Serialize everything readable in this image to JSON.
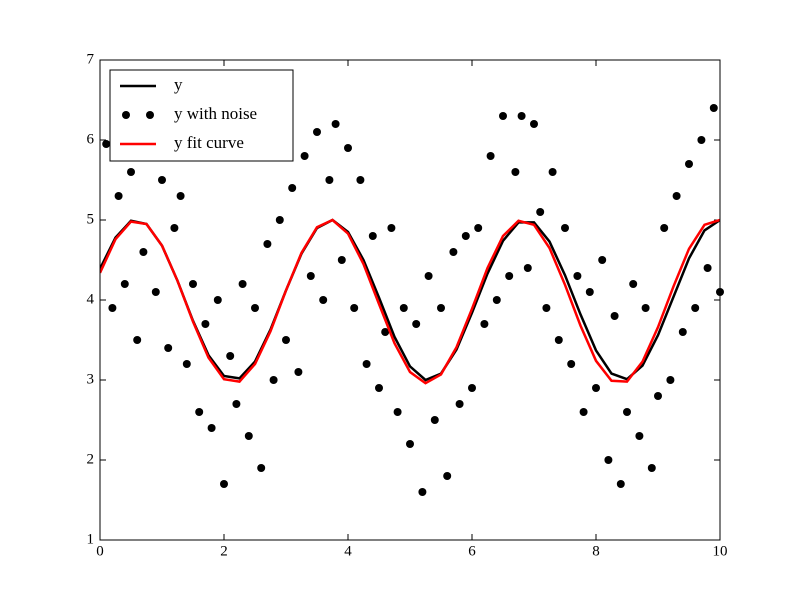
{
  "chart_data": {
    "type": "line",
    "xlim": [
      0,
      10
    ],
    "ylim": [
      1,
      7
    ],
    "xticks": [
      0,
      2,
      4,
      6,
      8,
      10
    ],
    "yticks": [
      1,
      2,
      3,
      4,
      5,
      6,
      7
    ],
    "legend": "upper left",
    "series": [
      {
        "name": "y",
        "color": "#000000",
        "style": "line",
        "x": [
          0,
          0.25,
          0.5,
          0.75,
          1,
          1.25,
          1.5,
          1.75,
          2,
          2.25,
          2.5,
          2.75,
          3,
          3.25,
          3.5,
          3.75,
          4,
          4.25,
          4.5,
          4.75,
          5,
          5.25,
          5.5,
          5.75,
          6,
          6.25,
          6.5,
          6.75,
          7,
          7.25,
          7.5,
          7.75,
          8,
          8.25,
          8.5,
          8.75,
          9,
          9.25,
          9.5,
          9.75,
          10
        ],
        "values": [
          4.39,
          4.78,
          4.99,
          4.95,
          4.68,
          4.24,
          3.74,
          3.31,
          3.05,
          3.02,
          3.23,
          3.63,
          4.12,
          4.58,
          4.9,
          5,
          4.85,
          4.5,
          4.03,
          3.54,
          3.17,
          3,
          3.08,
          3.38,
          3.84,
          4.33,
          4.74,
          4.97,
          4.97,
          4.73,
          4.31,
          3.82,
          3.37,
          3.08,
          3.01,
          3.18,
          3.56,
          4.04,
          4.52,
          4.87,
          5
        ]
      },
      {
        "name": "y with noise",
        "color": "#000000",
        "style": "markers",
        "x": [
          0.1,
          0.2,
          0.3,
          0.4,
          0.5,
          0.6,
          0.7,
          0.8,
          0.9,
          1,
          1.1,
          1.2,
          1.3,
          1.4,
          1.5,
          1.6,
          1.7,
          1.8,
          1.9,
          2,
          2.1,
          2.2,
          2.3,
          2.4,
          2.5,
          2.6,
          2.7,
          2.8,
          2.9,
          3,
          3.1,
          3.2,
          3.3,
          3.4,
          3.5,
          3.6,
          3.7,
          3.8,
          3.9,
          4,
          4.1,
          4.2,
          4.3,
          4.4,
          4.5,
          4.6,
          4.7,
          4.8,
          4.9,
          5,
          5.1,
          5.2,
          5.3,
          5.4,
          5.5,
          5.6,
          5.7,
          5.8,
          5.9,
          6,
          6.1,
          6.2,
          6.3,
          6.4,
          6.5,
          6.6,
          6.7,
          6.8,
          6.9,
          7,
          7.1,
          7.2,
          7.3,
          7.4,
          7.5,
          7.6,
          7.7,
          7.8,
          7.9,
          8,
          8.1,
          8.2,
          8.3,
          8.4,
          8.5,
          8.6,
          8.7,
          8.8,
          8.9,
          9,
          9.1,
          9.2,
          9.3,
          9.4,
          9.5,
          9.6,
          9.7,
          9.8,
          9.9,
          10
        ],
        "values": [
          5.95,
          3.9,
          5.3,
          4.2,
          5.6,
          3.5,
          4.6,
          6,
          4.1,
          5.5,
          3.4,
          4.9,
          5.3,
          3.2,
          4.2,
          2.6,
          3.7,
          2.4,
          4,
          1.7,
          3.3,
          2.7,
          4.2,
          2.3,
          3.9,
          1.9,
          4.7,
          3,
          5,
          3.5,
          5.4,
          3.1,
          5.8,
          4.3,
          6.1,
          4,
          5.5,
          6.2,
          4.5,
          5.9,
          3.9,
          5.5,
          3.2,
          4.8,
          2.9,
          3.6,
          4.9,
          2.6,
          3.9,
          2.2,
          3.7,
          1.6,
          4.3,
          2.5,
          3.9,
          1.8,
          4.6,
          2.7,
          4.8,
          2.9,
          4.9,
          3.7,
          5.8,
          4,
          6.3,
          4.3,
          5.6,
          6.3,
          4.4,
          6.2,
          5.1,
          3.9,
          5.6,
          3.5,
          4.9,
          3.2,
          4.3,
          2.6,
          4.1,
          2.9,
          4.5,
          2,
          3.8,
          1.7,
          2.6,
          4.2,
          2.3,
          3.9,
          1.9,
          2.8,
          4.9,
          3,
          5.3,
          3.6,
          5.7,
          3.9,
          6,
          4.4,
          6.4,
          4.1
        ]
      },
      {
        "name": "y fit curve",
        "color": "#ff0000",
        "style": "line",
        "x": [
          0,
          0.25,
          0.5,
          0.75,
          1,
          1.25,
          1.5,
          1.75,
          2,
          2.25,
          2.5,
          2.75,
          3,
          3.25,
          3.5,
          3.75,
          4,
          4.25,
          4.5,
          4.75,
          5,
          5.25,
          5.5,
          5.75,
          6,
          6.25,
          6.5,
          6.75,
          7,
          7.25,
          7.5,
          7.75,
          8,
          8.25,
          8.5,
          8.75,
          9,
          9.25,
          9.5,
          9.75,
          10
        ],
        "values": [
          4.34,
          4.76,
          4.98,
          4.95,
          4.68,
          4.24,
          3.73,
          3.28,
          3.01,
          2.98,
          3.2,
          3.61,
          4.12,
          4.59,
          4.91,
          5,
          4.83,
          4.45,
          3.95,
          3.46,
          3.1,
          2.96,
          3.07,
          3.41,
          3.89,
          4.4,
          4.8,
          4.99,
          4.94,
          4.65,
          4.19,
          3.68,
          3.24,
          2.99,
          2.98,
          3.23,
          3.66,
          4.17,
          4.64,
          4.94,
          5
        ]
      }
    ]
  }
}
